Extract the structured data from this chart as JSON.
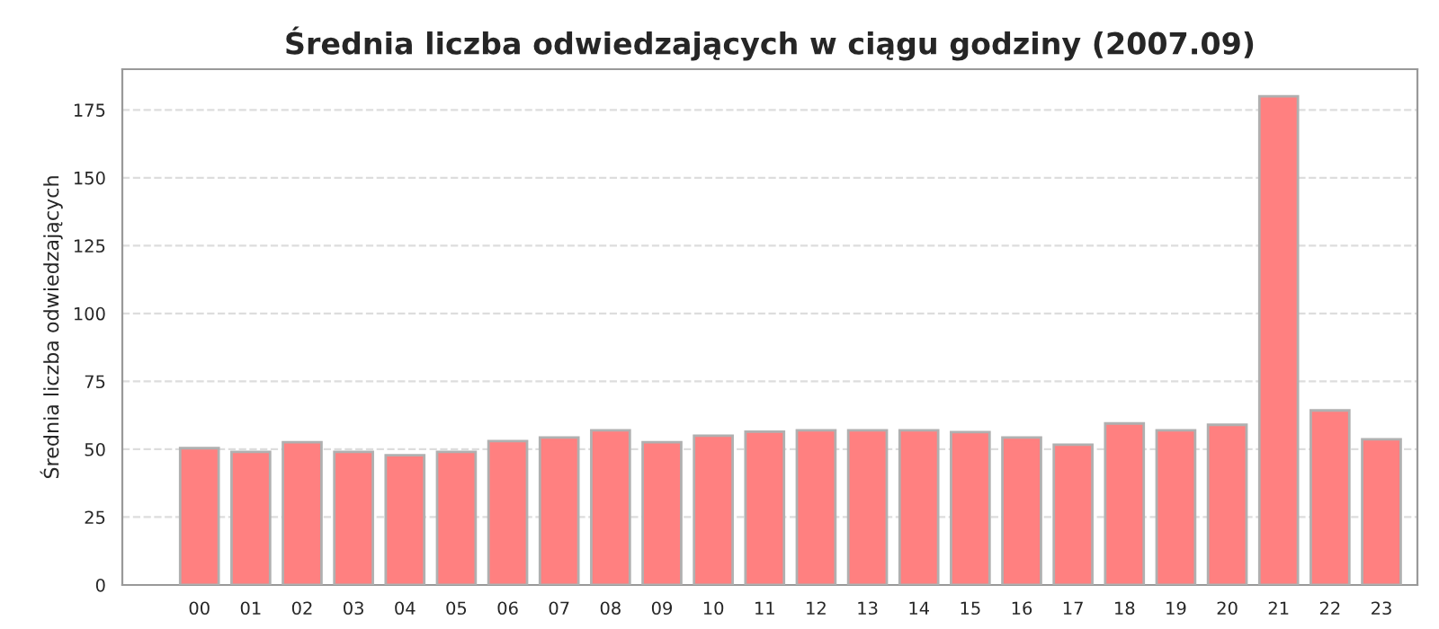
{
  "chart_data": {
    "type": "bar",
    "title": "Średnia liczba odwiedzających w ciągu godziny (2007.09)",
    "ylabel": "Średnia liczba odwiedzających",
    "categories": [
      "00",
      "01",
      "02",
      "03",
      "04",
      "05",
      "06",
      "07",
      "08",
      "09",
      "10",
      "11",
      "12",
      "13",
      "14",
      "15",
      "16",
      "17",
      "18",
      "19",
      "20",
      "21",
      "22",
      "23"
    ],
    "values": [
      50.4,
      49,
      52.6,
      49,
      47.8,
      49,
      53,
      54.3,
      57,
      52.6,
      55,
      56.5,
      57,
      57,
      57,
      56.3,
      54.3,
      51.7,
      59.5,
      57,
      59,
      180,
      64.3,
      53.7
    ],
    "color": "#ff8080",
    "ylim": [
      0,
      190
    ],
    "yticks": [
      0,
      25,
      50,
      75,
      100,
      125,
      150,
      175
    ],
    "grid": "y"
  }
}
